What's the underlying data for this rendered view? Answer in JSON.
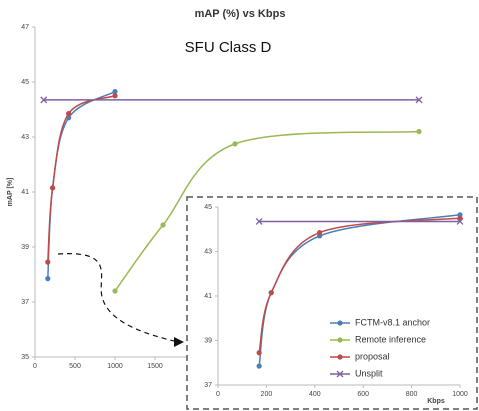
{
  "chart_data": [
    {
      "type": "line",
      "title": "mAP (%) vs Kbps",
      "subtitle": "SFU Class D",
      "ylabel": "mAP [%]",
      "xlim": [
        0,
        5000
      ],
      "xticks": [
        0,
        500,
        1000,
        1500
      ],
      "ylim": [
        35,
        47
      ],
      "yticks": [
        35,
        37,
        39,
        41,
        43,
        45,
        47
      ],
      "series": [
        {
          "color": "#4a7ebb",
          "marker": "circle",
          "x": [
            160,
            220,
            420,
            1000
          ],
          "values": [
            37.85,
            41.15,
            43.7,
            44.65
          ]
        },
        {
          "color": "#98b954",
          "marker": "circle",
          "x": [
            1000,
            1600,
            2500,
            4800
          ],
          "values": [
            37.4,
            39.8,
            42.75,
            43.2
          ]
        },
        {
          "color": "#be4b48",
          "marker": "circle",
          "x": [
            160,
            220,
            420,
            1000
          ],
          "values": [
            38.45,
            41.15,
            43.85,
            44.5
          ]
        },
        {
          "color": "#7d60a0",
          "marker": "x",
          "x": [
            110,
            4800
          ],
          "values": [
            44.35,
            44.35
          ]
        }
      ]
    },
    {
      "type": "line",
      "xlabel": "Kbps",
      "xlim": [
        0,
        1000
      ],
      "xticks": [
        0,
        200,
        400,
        600,
        800,
        1000
      ],
      "ylim": [
        37,
        45
      ],
      "yticks": [
        37,
        39,
        41,
        43,
        45
      ],
      "series": [
        {
          "name": "FCTM-v8.1 anchor",
          "color": "#4a7ebb",
          "marker": "circle",
          "x": [
            170,
            220,
            420,
            1000
          ],
          "values": [
            37.85,
            41.15,
            43.7,
            44.65
          ]
        },
        {
          "name": "Remote inference",
          "color": "#98b954",
          "marker": "circle",
          "x": [],
          "values": []
        },
        {
          "name": "proposal",
          "color": "#be4b48",
          "marker": "circle",
          "x": [
            170,
            220,
            420,
            1000
          ],
          "values": [
            38.45,
            41.15,
            43.85,
            44.5
          ]
        },
        {
          "name": "Unsplit",
          "color": "#7d60a0",
          "marker": "x",
          "x": [
            170,
            1000
          ],
          "values": [
            44.35,
            44.35
          ]
        }
      ]
    }
  ]
}
